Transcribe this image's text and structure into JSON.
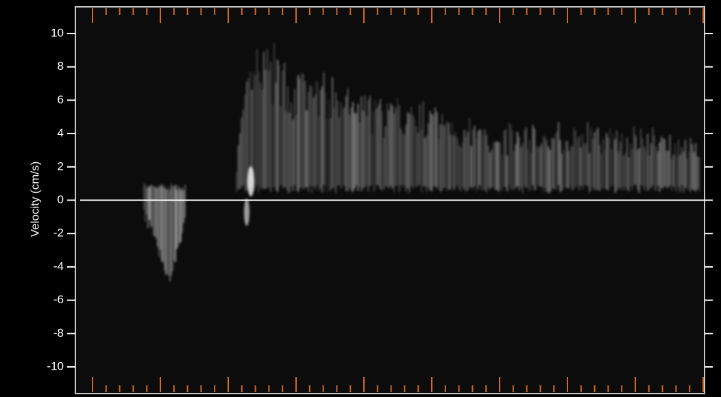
{
  "chart_data": {
    "type": "spectrogram",
    "y_label": "Velocity (cm/s)",
    "ylim": [
      -11.6,
      11.6
    ],
    "yticks": [
      -10,
      -8,
      -6,
      -4,
      -2,
      0,
      2,
      4,
      6,
      8,
      10
    ]
  }
}
